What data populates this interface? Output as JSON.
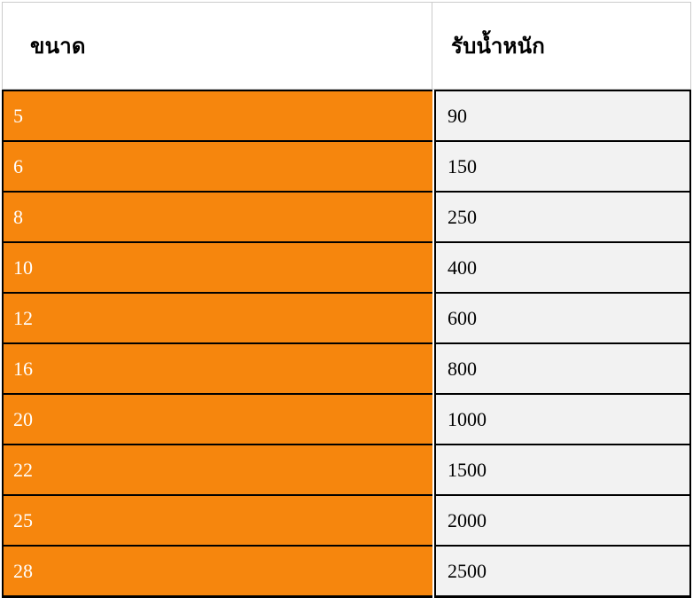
{
  "table": {
    "columns": [
      {
        "label": "ขนาด"
      },
      {
        "label": "รับน้ำหนัก"
      }
    ],
    "rows": [
      {
        "size": "5",
        "capacity": "90"
      },
      {
        "size": "6",
        "capacity": "150"
      },
      {
        "size": "8",
        "capacity": "250"
      },
      {
        "size": "10",
        "capacity": "400"
      },
      {
        "size": "12",
        "capacity": "600"
      },
      {
        "size": "16",
        "capacity": "800"
      },
      {
        "size": "20",
        "capacity": "1000"
      },
      {
        "size": "22",
        "capacity": "1500"
      },
      {
        "size": "25",
        "capacity": "2000"
      },
      {
        "size": "28",
        "capacity": "2500"
      }
    ],
    "colors": {
      "accent": "#f6860d",
      "row_alt": "#f2f2f2",
      "grid": "#000000",
      "header_border": "#cbcbcb"
    }
  },
  "chart_data": {
    "type": "table",
    "title": "",
    "columns": [
      "ขนาด",
      "รับน้ำหนัก"
    ],
    "rows": [
      [
        5,
        90
      ],
      [
        6,
        150
      ],
      [
        8,
        250
      ],
      [
        10,
        400
      ],
      [
        12,
        600
      ],
      [
        16,
        800
      ],
      [
        20,
        1000
      ],
      [
        22,
        1500
      ],
      [
        25,
        2000
      ],
      [
        28,
        2500
      ]
    ]
  }
}
